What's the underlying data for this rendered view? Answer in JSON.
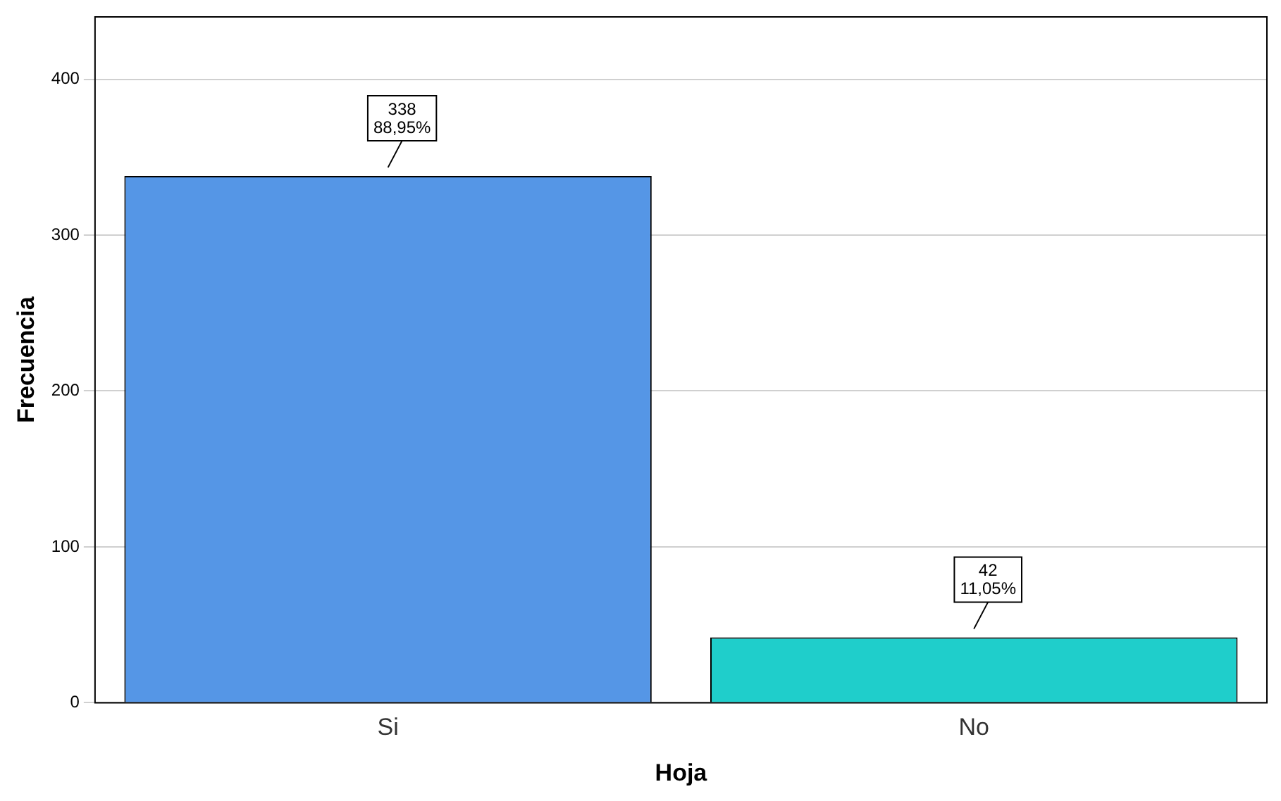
{
  "chart_data": {
    "type": "bar",
    "xlabel": "Hoja",
    "ylabel": "Frecuencia",
    "categories": [
      "Si",
      "No"
    ],
    "values": [
      338,
      42
    ],
    "colors": [
      "#5596e6",
      "#1fcecb"
    ],
    "value_labels": [
      "338\n88,95%",
      "42\n11,05%"
    ],
    "ylim": [
      0,
      440
    ],
    "yticks": [
      0,
      100,
      200,
      300,
      400
    ],
    "grid": "y",
    "legend": false
  }
}
